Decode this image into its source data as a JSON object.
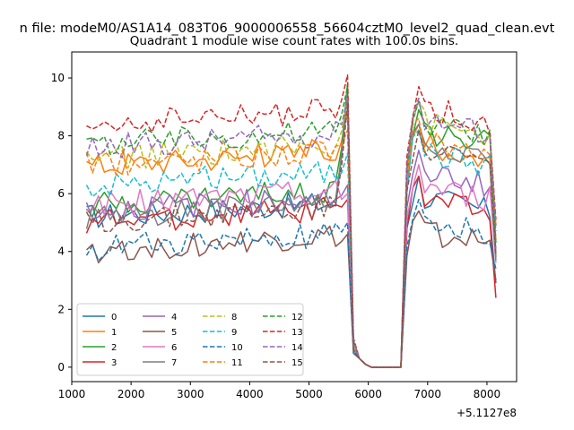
{
  "figure": {
    "suptitle": "n file: modeM0/AS1A14_083T06_9000006558_56604cztM0_level2_quad_clean.evt",
    "offset_label": "+5.1127e8"
  },
  "chart_data": {
    "type": "line",
    "title": "Quadrant 1 module wise count rates with 100.0s bins.",
    "xlabel": "",
    "ylabel": "",
    "xlim": [
      1000,
      8500
    ],
    "ylim": [
      -0.5,
      10.9
    ],
    "x_offset": 511270000,
    "xticks": [
      1000,
      2000,
      3000,
      4000,
      5000,
      6000,
      7000,
      8000
    ],
    "xtick_labels": [
      "1000",
      "2000",
      "3000",
      "4000",
      "5000",
      "6000",
      "7000",
      "8000"
    ],
    "yticks": [
      0,
      2,
      4,
      6,
      8,
      10
    ],
    "ytick_labels": [
      "0",
      "2",
      "4",
      "6",
      "8",
      "10"
    ],
    "grid": false,
    "legend_position": "lower-left",
    "legend_columns": 4,
    "bin_start": 1250,
    "bin_step": 100,
    "profile": {
      "gap_x": [
        5750,
        5850,
        5950,
        6050,
        6150,
        6250,
        6350,
        6450,
        6550
      ],
      "gap_y": [
        0.8,
        0.3,
        0.1,
        0.0,
        0.0,
        0.0,
        0.0,
        0.0,
        0.0
      ]
    },
    "series": [
      {
        "name": "0",
        "color": "#1f77b4",
        "dashed": false,
        "base": 5.2,
        "peak": 9.5,
        "post": 6.0,
        "end": 2.9
      },
      {
        "name": "1",
        "color": "#ff7f0e",
        "dashed": false,
        "base": 7.0,
        "peak": 8.8,
        "post": 7.8,
        "end": 4.4
      },
      {
        "name": "2",
        "color": "#2ca02c",
        "dashed": false,
        "base": 5.6,
        "peak": 9.8,
        "post": 8.3,
        "end": 3.8
      },
      {
        "name": "3",
        "color": "#d62728",
        "dashed": false,
        "base": 5.0,
        "peak": 5.8,
        "post": 6.0,
        "end": 2.4
      },
      {
        "name": "4",
        "color": "#9467bd",
        "dashed": false,
        "base": 5.4,
        "peak": 6.3,
        "post": 6.9,
        "end": 4.1
      },
      {
        "name": "5",
        "color": "#8c564b",
        "dashed": false,
        "base": 4.0,
        "peak": 4.6,
        "post": 4.8,
        "end": 3.0
      },
      {
        "name": "6",
        "color": "#e377c2",
        "dashed": false,
        "base": 5.6,
        "peak": 6.0,
        "post": 6.4,
        "end": 3.6
      },
      {
        "name": "7",
        "color": "#7f7f7f",
        "dashed": false,
        "base": 5.2,
        "peak": 9.6,
        "post": 7.8,
        "end": 3.7
      },
      {
        "name": "8",
        "color": "#bcbd22",
        "dashed": true,
        "base": 7.2,
        "peak": 9.3,
        "post": 8.6,
        "end": 4.9
      },
      {
        "name": "9",
        "color": "#17becf",
        "dashed": true,
        "base": 6.3,
        "peak": 7.4,
        "post": 7.6,
        "end": 4.7
      },
      {
        "name": "10",
        "color": "#1f77b4",
        "dashed": true,
        "base": 4.1,
        "peak": 5.0,
        "post": 5.2,
        "end": 3.4
      },
      {
        "name": "11",
        "color": "#ff7f0e",
        "dashed": true,
        "base": 7.0,
        "peak": 8.2,
        "post": 8.0,
        "end": 4.9
      },
      {
        "name": "12",
        "color": "#2ca02c",
        "dashed": true,
        "base": 7.7,
        "peak": 9.7,
        "post": 8.6,
        "end": 4.3
      },
      {
        "name": "13",
        "color": "#d62728",
        "dashed": true,
        "base": 8.4,
        "peak": 10.1,
        "post": 9.1,
        "end": 5.1
      },
      {
        "name": "14",
        "color": "#9467bd",
        "dashed": true,
        "base": 7.6,
        "peak": 9.3,
        "post": 8.7,
        "end": 4.9
      },
      {
        "name": "15",
        "color": "#8c564b",
        "dashed": true,
        "base": 5.0,
        "peak": 9.1,
        "post": 7.6,
        "end": 3.9
      }
    ]
  }
}
